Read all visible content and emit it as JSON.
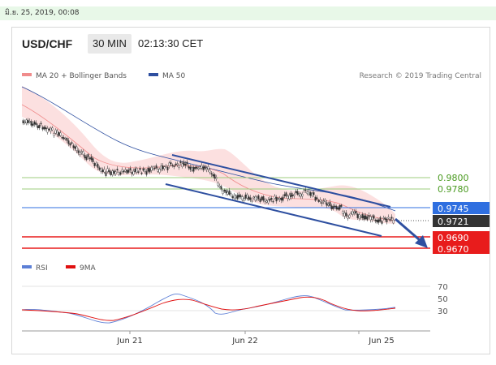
{
  "topbar": {
    "datetime": "มิ.ย. 25, 2019, 00:08"
  },
  "header": {
    "pair": "USD/CHF",
    "timeframe": "30 MIN",
    "time": "02:13:30 CET"
  },
  "legend": {
    "ma20": "MA 20 + Bollinger Bands",
    "ma50": "MA 50",
    "credit": "Research © 2019 Trading Central",
    "rsi": "RSI",
    "rsi_ma": "9MA"
  },
  "levels": {
    "r2": "0.9800",
    "r1": "0.9780",
    "pivot": "0.9745",
    "current": "0.9721",
    "s1": "0.9690",
    "s2": "0.9670"
  },
  "rsi_axis": {
    "t70": "70",
    "t50": "50",
    "t30": "30"
  },
  "xaxis": {
    "d1": "Jun 21",
    "d2": "Jun 22",
    "d3": "Jun 25"
  },
  "colors": {
    "ma20": "#f08c8c",
    "ma50": "#2e4fa0",
    "bands": "#fcdada",
    "pivot_tag": "#2f6fe0",
    "support": "#e81c1c",
    "resistance_line": "#9ccc7c",
    "resistance_text": "#4a9a20",
    "rsi_line": "#5c7fd6",
    "rsi_ma_line": "#e01010"
  }
}
